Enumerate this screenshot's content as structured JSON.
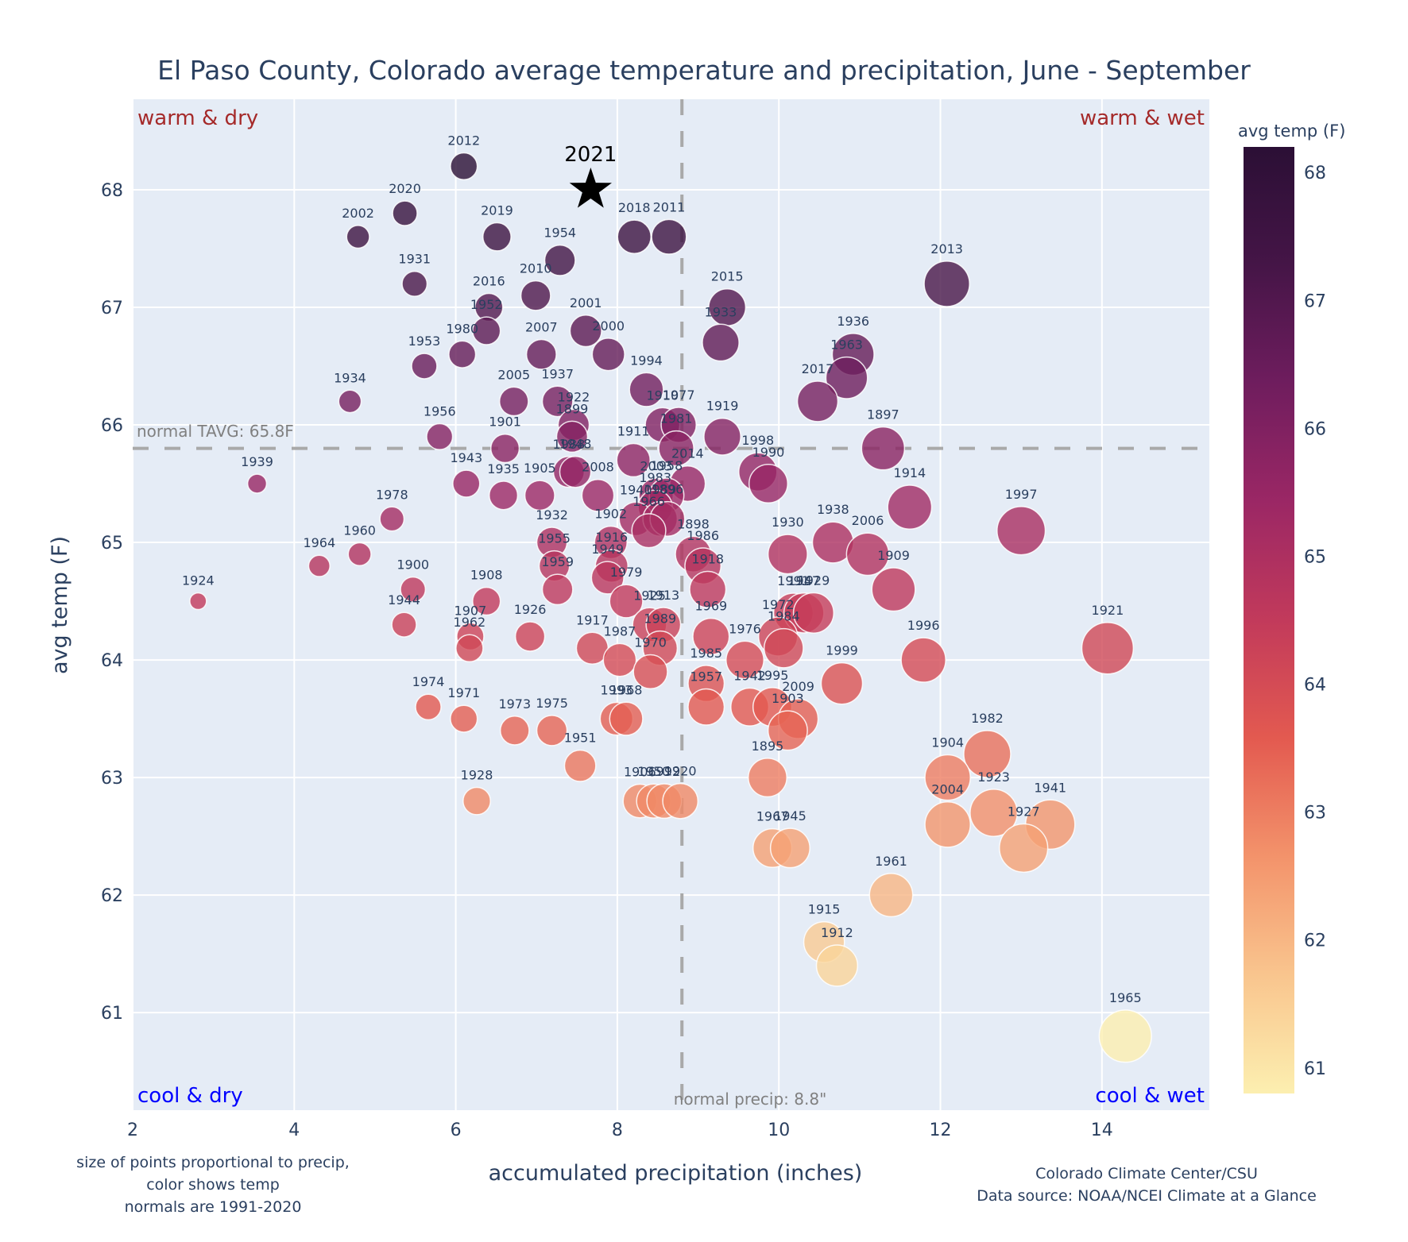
{
  "chart_data": {
    "type": "scatter",
    "title": "El Paso County, Colorado average temperature and precipitation, June - September",
    "xlabel": "accumulated precipitation (inches)",
    "ylabel": "avg temp (F)",
    "xlim": [
      2,
      15.33
    ],
    "ylim": [
      60.17,
      68.77
    ],
    "x_ticks": [
      2,
      4,
      6,
      8,
      10,
      12,
      14
    ],
    "y_ticks": [
      61,
      62,
      63,
      64,
      65,
      66,
      67,
      68
    ],
    "grid": true,
    "normal_temp": 65.8,
    "normal_precip": 8.8,
    "normal_temp_label": "normal TAVG: 65.8F",
    "normal_precip_label": "normal precip: 8.8\"",
    "quadrants": {
      "top_left": "warm & dry",
      "top_right": "warm & wet",
      "bottom_left": "cool & dry",
      "bottom_right": "cool & wet"
    },
    "colorbar": {
      "title": "avg temp (F)",
      "range": [
        60.8,
        68.2
      ],
      "ticks": [
        61,
        62,
        63,
        64,
        65,
        66,
        67,
        68
      ],
      "colors": [
        "#fcefb0",
        "#f9c58e",
        "#f3936b",
        "#e35a50",
        "#c23a5b",
        "#9b2765",
        "#6f1d5e",
        "#451547",
        "#2b0f35"
      ]
    },
    "highlight": {
      "label": "2021",
      "x": 7.67,
      "y": 68.0,
      "marker": "star"
    },
    "points": [
      {
        "year": "2012",
        "x": 6.1,
        "y": 68.2
      },
      {
        "year": "2020",
        "x": 5.37,
        "y": 67.8
      },
      {
        "year": "2002",
        "x": 4.79,
        "y": 67.6
      },
      {
        "year": "2019",
        "x": 6.51,
        "y": 67.6
      },
      {
        "year": "2018",
        "x": 8.21,
        "y": 67.6
      },
      {
        "year": "2011",
        "x": 8.64,
        "y": 67.6
      },
      {
        "year": "1954",
        "x": 7.29,
        "y": 67.4
      },
      {
        "year": "1931",
        "x": 5.49,
        "y": 67.2
      },
      {
        "year": "2013",
        "x": 12.08,
        "y": 67.2
      },
      {
        "year": "2010",
        "x": 6.99,
        "y": 67.1
      },
      {
        "year": "2016",
        "x": 6.41,
        "y": 67.0
      },
      {
        "year": "2015",
        "x": 9.36,
        "y": 67.0
      },
      {
        "year": "1952",
        "x": 6.38,
        "y": 66.8
      },
      {
        "year": "2001",
        "x": 7.61,
        "y": 66.8
      },
      {
        "year": "1933",
        "x": 9.28,
        "y": 66.7
      },
      {
        "year": "1980",
        "x": 6.08,
        "y": 66.6
      },
      {
        "year": "2007",
        "x": 7.06,
        "y": 66.6
      },
      {
        "year": "2000",
        "x": 7.89,
        "y": 66.6
      },
      {
        "year": "1936",
        "x": 10.92,
        "y": 66.6
      },
      {
        "year": "1953",
        "x": 5.61,
        "y": 66.5
      },
      {
        "year": "1963",
        "x": 10.84,
        "y": 66.4
      },
      {
        "year": "1994",
        "x": 8.36,
        "y": 66.3
      },
      {
        "year": "1934",
        "x": 4.69,
        "y": 66.2
      },
      {
        "year": "2005",
        "x": 6.72,
        "y": 66.2
      },
      {
        "year": "1937",
        "x": 7.26,
        "y": 66.2
      },
      {
        "year": "2017",
        "x": 10.48,
        "y": 66.2
      },
      {
        "year": "1910",
        "x": 8.56,
        "y": 66.0
      },
      {
        "year": "1977",
        "x": 8.76,
        "y": 66.0
      },
      {
        "year": "1922",
        "x": 7.46,
        "y": 66.0
      },
      {
        "year": "1956",
        "x": 5.8,
        "y": 65.9
      },
      {
        "year": "1919",
        "x": 9.3,
        "y": 65.9
      },
      {
        "year": "1899",
        "x": 7.44,
        "y": 65.9
      },
      {
        "year": "1901",
        "x": 6.61,
        "y": 65.8
      },
      {
        "year": "1988",
        "x": 7.4,
        "y": 65.6
      },
      {
        "year": "1897",
        "x": 11.29,
        "y": 65.8
      },
      {
        "year": "1981",
        "x": 8.73,
        "y": 65.8
      },
      {
        "year": "1911",
        "x": 8.2,
        "y": 65.7
      },
      {
        "year": "1948",
        "x": 7.48,
        "y": 65.6
      },
      {
        "year": "1998",
        "x": 9.74,
        "y": 65.6
      },
      {
        "year": "2014",
        "x": 8.87,
        "y": 65.5
      },
      {
        "year": "1990",
        "x": 9.87,
        "y": 65.5
      },
      {
        "year": "1939",
        "x": 3.54,
        "y": 65.5
      },
      {
        "year": "1943",
        "x": 6.13,
        "y": 65.5
      },
      {
        "year": "1935",
        "x": 6.59,
        "y": 65.4
      },
      {
        "year": "1905",
        "x": 7.04,
        "y": 65.4
      },
      {
        "year": "2008",
        "x": 7.76,
        "y": 65.4
      },
      {
        "year": "2003",
        "x": 8.48,
        "y": 65.4
      },
      {
        "year": "1958",
        "x": 8.61,
        "y": 65.4
      },
      {
        "year": "1983",
        "x": 8.47,
        "y": 65.3
      },
      {
        "year": "1914",
        "x": 11.62,
        "y": 65.3
      },
      {
        "year": "1978",
        "x": 5.21,
        "y": 65.2
      },
      {
        "year": "1940",
        "x": 8.23,
        "y": 65.2
      },
      {
        "year": "1989",
        "x": 8.53,
        "y": 65.2
      },
      {
        "year": "1896",
        "x": 8.62,
        "y": 65.2
      },
      {
        "year": "1966",
        "x": 8.39,
        "y": 65.1
      },
      {
        "year": "1997",
        "x": 13.0,
        "y": 65.1
      },
      {
        "year": "1932",
        "x": 7.19,
        "y": 65.0
      },
      {
        "year": "1902",
        "x": 7.92,
        "y": 65.0
      },
      {
        "year": "1938",
        "x": 10.67,
        "y": 65.0
      },
      {
        "year": "1916",
        "x": 7.93,
        "y": 64.8
      },
      {
        "year": "1898",
        "x": 8.94,
        "y": 64.9
      },
      {
        "year": "1930",
        "x": 10.11,
        "y": 64.9
      },
      {
        "year": "2006",
        "x": 11.1,
        "y": 64.9
      },
      {
        "year": "1960",
        "x": 4.81,
        "y": 64.9
      },
      {
        "year": "1964",
        "x": 4.31,
        "y": 64.8
      },
      {
        "year": "1955",
        "x": 7.22,
        "y": 64.8
      },
      {
        "year": "1986",
        "x": 9.06,
        "y": 64.8
      },
      {
        "year": "1949",
        "x": 7.88,
        "y": 64.7
      },
      {
        "year": "1959",
        "x": 7.26,
        "y": 64.6
      },
      {
        "year": "1918",
        "x": 9.12,
        "y": 64.6
      },
      {
        "year": "1909",
        "x": 11.42,
        "y": 64.6
      },
      {
        "year": "1900",
        "x": 5.47,
        "y": 64.6
      },
      {
        "year": "1908",
        "x": 6.38,
        "y": 64.5
      },
      {
        "year": "1924",
        "x": 2.81,
        "y": 64.5
      },
      {
        "year": "1979",
        "x": 8.11,
        "y": 64.5
      },
      {
        "year": "1925",
        "x": 8.4,
        "y": 64.3
      },
      {
        "year": "1991",
        "x": 10.18,
        "y": 64.4
      },
      {
        "year": "1947",
        "x": 10.31,
        "y": 64.4
      },
      {
        "year": "1929",
        "x": 10.43,
        "y": 64.4
      },
      {
        "year": "1944",
        "x": 5.36,
        "y": 64.3
      },
      {
        "year": "1913",
        "x": 8.57,
        "y": 64.3
      },
      {
        "year": "1969",
        "x": 9.16,
        "y": 64.2
      },
      {
        "year": "1907",
        "x": 6.18,
        "y": 64.2
      },
      {
        "year": "1926",
        "x": 6.92,
        "y": 64.2
      },
      {
        "year": "1972",
        "x": 9.99,
        "y": 64.2
      },
      {
        "year": "1962",
        "x": 6.17,
        "y": 64.1
      },
      {
        "year": "1984",
        "x": 10.06,
        "y": 64.1
      },
      {
        "year": "1921",
        "x": 14.07,
        "y": 64.1
      },
      {
        "year": "1917",
        "x": 7.69,
        "y": 64.1
      },
      {
        "year": "1989b",
        "x": 8.53,
        "y": 64.1
      },
      {
        "year": "1987",
        "x": 8.03,
        "y": 64.0
      },
      {
        "year": "1976",
        "x": 9.58,
        "y": 64.0
      },
      {
        "year": "1996",
        "x": 11.79,
        "y": 64.0
      },
      {
        "year": "1970",
        "x": 8.41,
        "y": 63.9
      },
      {
        "year": "1985",
        "x": 9.1,
        "y": 63.8
      },
      {
        "year": "1999",
        "x": 10.78,
        "y": 63.8
      },
      {
        "year": "1974",
        "x": 5.66,
        "y": 63.6
      },
      {
        "year": "1957",
        "x": 9.1,
        "y": 63.6
      },
      {
        "year": "1942",
        "x": 9.64,
        "y": 63.6
      },
      {
        "year": "1995",
        "x": 9.92,
        "y": 63.6
      },
      {
        "year": "2009",
        "x": 10.24,
        "y": 63.5
      },
      {
        "year": "1971",
        "x": 6.1,
        "y": 63.5
      },
      {
        "year": "1993",
        "x": 7.99,
        "y": 63.5
      },
      {
        "year": "1968",
        "x": 8.11,
        "y": 63.5
      },
      {
        "year": "1903",
        "x": 10.11,
        "y": 63.4
      },
      {
        "year": "1973",
        "x": 6.73,
        "y": 63.4
      },
      {
        "year": "1975",
        "x": 7.19,
        "y": 63.4
      },
      {
        "year": "1982",
        "x": 12.58,
        "y": 63.2
      },
      {
        "year": "1951",
        "x": 7.54,
        "y": 63.1
      },
      {
        "year": "1904",
        "x": 12.09,
        "y": 63.0
      },
      {
        "year": "1895",
        "x": 9.86,
        "y": 63.0
      },
      {
        "year": "1928",
        "x": 6.26,
        "y": 62.8
      },
      {
        "year": "1906",
        "x": 8.28,
        "y": 62.8
      },
      {
        "year": "1950",
        "x": 8.45,
        "y": 62.8
      },
      {
        "year": "1992",
        "x": 8.58,
        "y": 62.8
      },
      {
        "year": "1920",
        "x": 8.78,
        "y": 62.8
      },
      {
        "year": "1923",
        "x": 12.66,
        "y": 62.7
      },
      {
        "year": "2004",
        "x": 12.09,
        "y": 62.6
      },
      {
        "year": "1941",
        "x": 13.36,
        "y": 62.6
      },
      {
        "year": "1927",
        "x": 13.03,
        "y": 62.4
      },
      {
        "year": "1967",
        "x": 9.92,
        "y": 62.4
      },
      {
        "year": "1945",
        "x": 10.14,
        "y": 62.4
      },
      {
        "year": "1961",
        "x": 11.39,
        "y": 62.0
      },
      {
        "year": "1915",
        "x": 10.56,
        "y": 61.6
      },
      {
        "year": "1912",
        "x": 10.72,
        "y": 61.4
      },
      {
        "year": "1965",
        "x": 14.29,
        "y": 60.8
      }
    ],
    "notes_left": [
      "size of points proportional to precip,",
      "color shows temp",
      "normals are 1991-2020"
    ],
    "notes_right": [
      "Colorado Climate Center/CSU",
      "Data source: NOAA/NCEI Climate at a Glance"
    ]
  }
}
